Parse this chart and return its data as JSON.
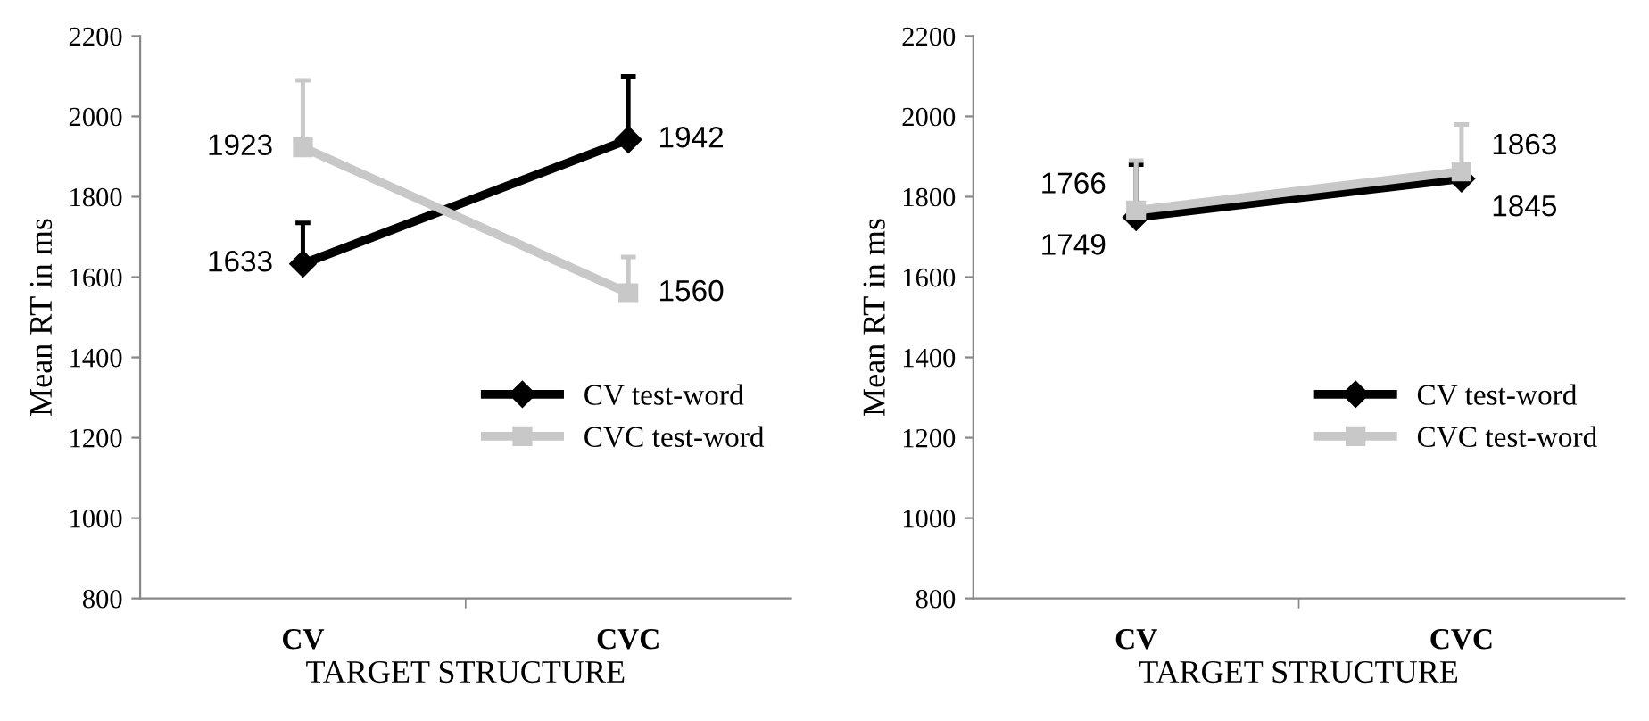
{
  "chart_data": [
    {
      "type": "line",
      "xlabel": "TARGET STRUCTURE",
      "ylabel": "Mean RT in ms",
      "categories": [
        "CV",
        "CVC"
      ],
      "ylim": [
        800,
        2200
      ],
      "yticks": [
        800,
        1000,
        1200,
        1400,
        1600,
        1800,
        2000,
        2200
      ],
      "grid": false,
      "legend": "right",
      "data_labels": true,
      "series": [
        {
          "name": "CV test-word",
          "color": "#000000",
          "marker": "diamond",
          "values": [
            1633,
            1942
          ],
          "errors": [
            [
              1633,
              1735
            ],
            [
              1942,
              2100
            ]
          ]
        },
        {
          "name": "CVC test-word",
          "color": "#c8c8c8",
          "marker": "square",
          "values": [
            1923,
            1560
          ],
          "errors": [
            [
              1923,
              2090
            ],
            [
              1560,
              1650
            ]
          ]
        }
      ]
    },
    {
      "type": "line",
      "xlabel": "TARGET STRUCTURE",
      "ylabel": "Mean RT in ms",
      "categories": [
        "CV",
        "CVC"
      ],
      "ylim": [
        800,
        2200
      ],
      "yticks": [
        800,
        1000,
        1200,
        1400,
        1600,
        1800,
        2000,
        2200
      ],
      "grid": false,
      "legend": "right",
      "data_labels": true,
      "series": [
        {
          "name": "CV test-word",
          "color": "#000000",
          "marker": "diamond",
          "values": [
            1749,
            1845
          ],
          "errors": [
            [
              1749,
              1880
            ],
            null
          ]
        },
        {
          "name": "CVC test-word",
          "color": "#c8c8c8",
          "marker": "square",
          "values": [
            1766,
            1863
          ],
          "errors": [
            [
              1766,
              1890
            ],
            [
              1863,
              1980
            ]
          ]
        }
      ]
    }
  ]
}
